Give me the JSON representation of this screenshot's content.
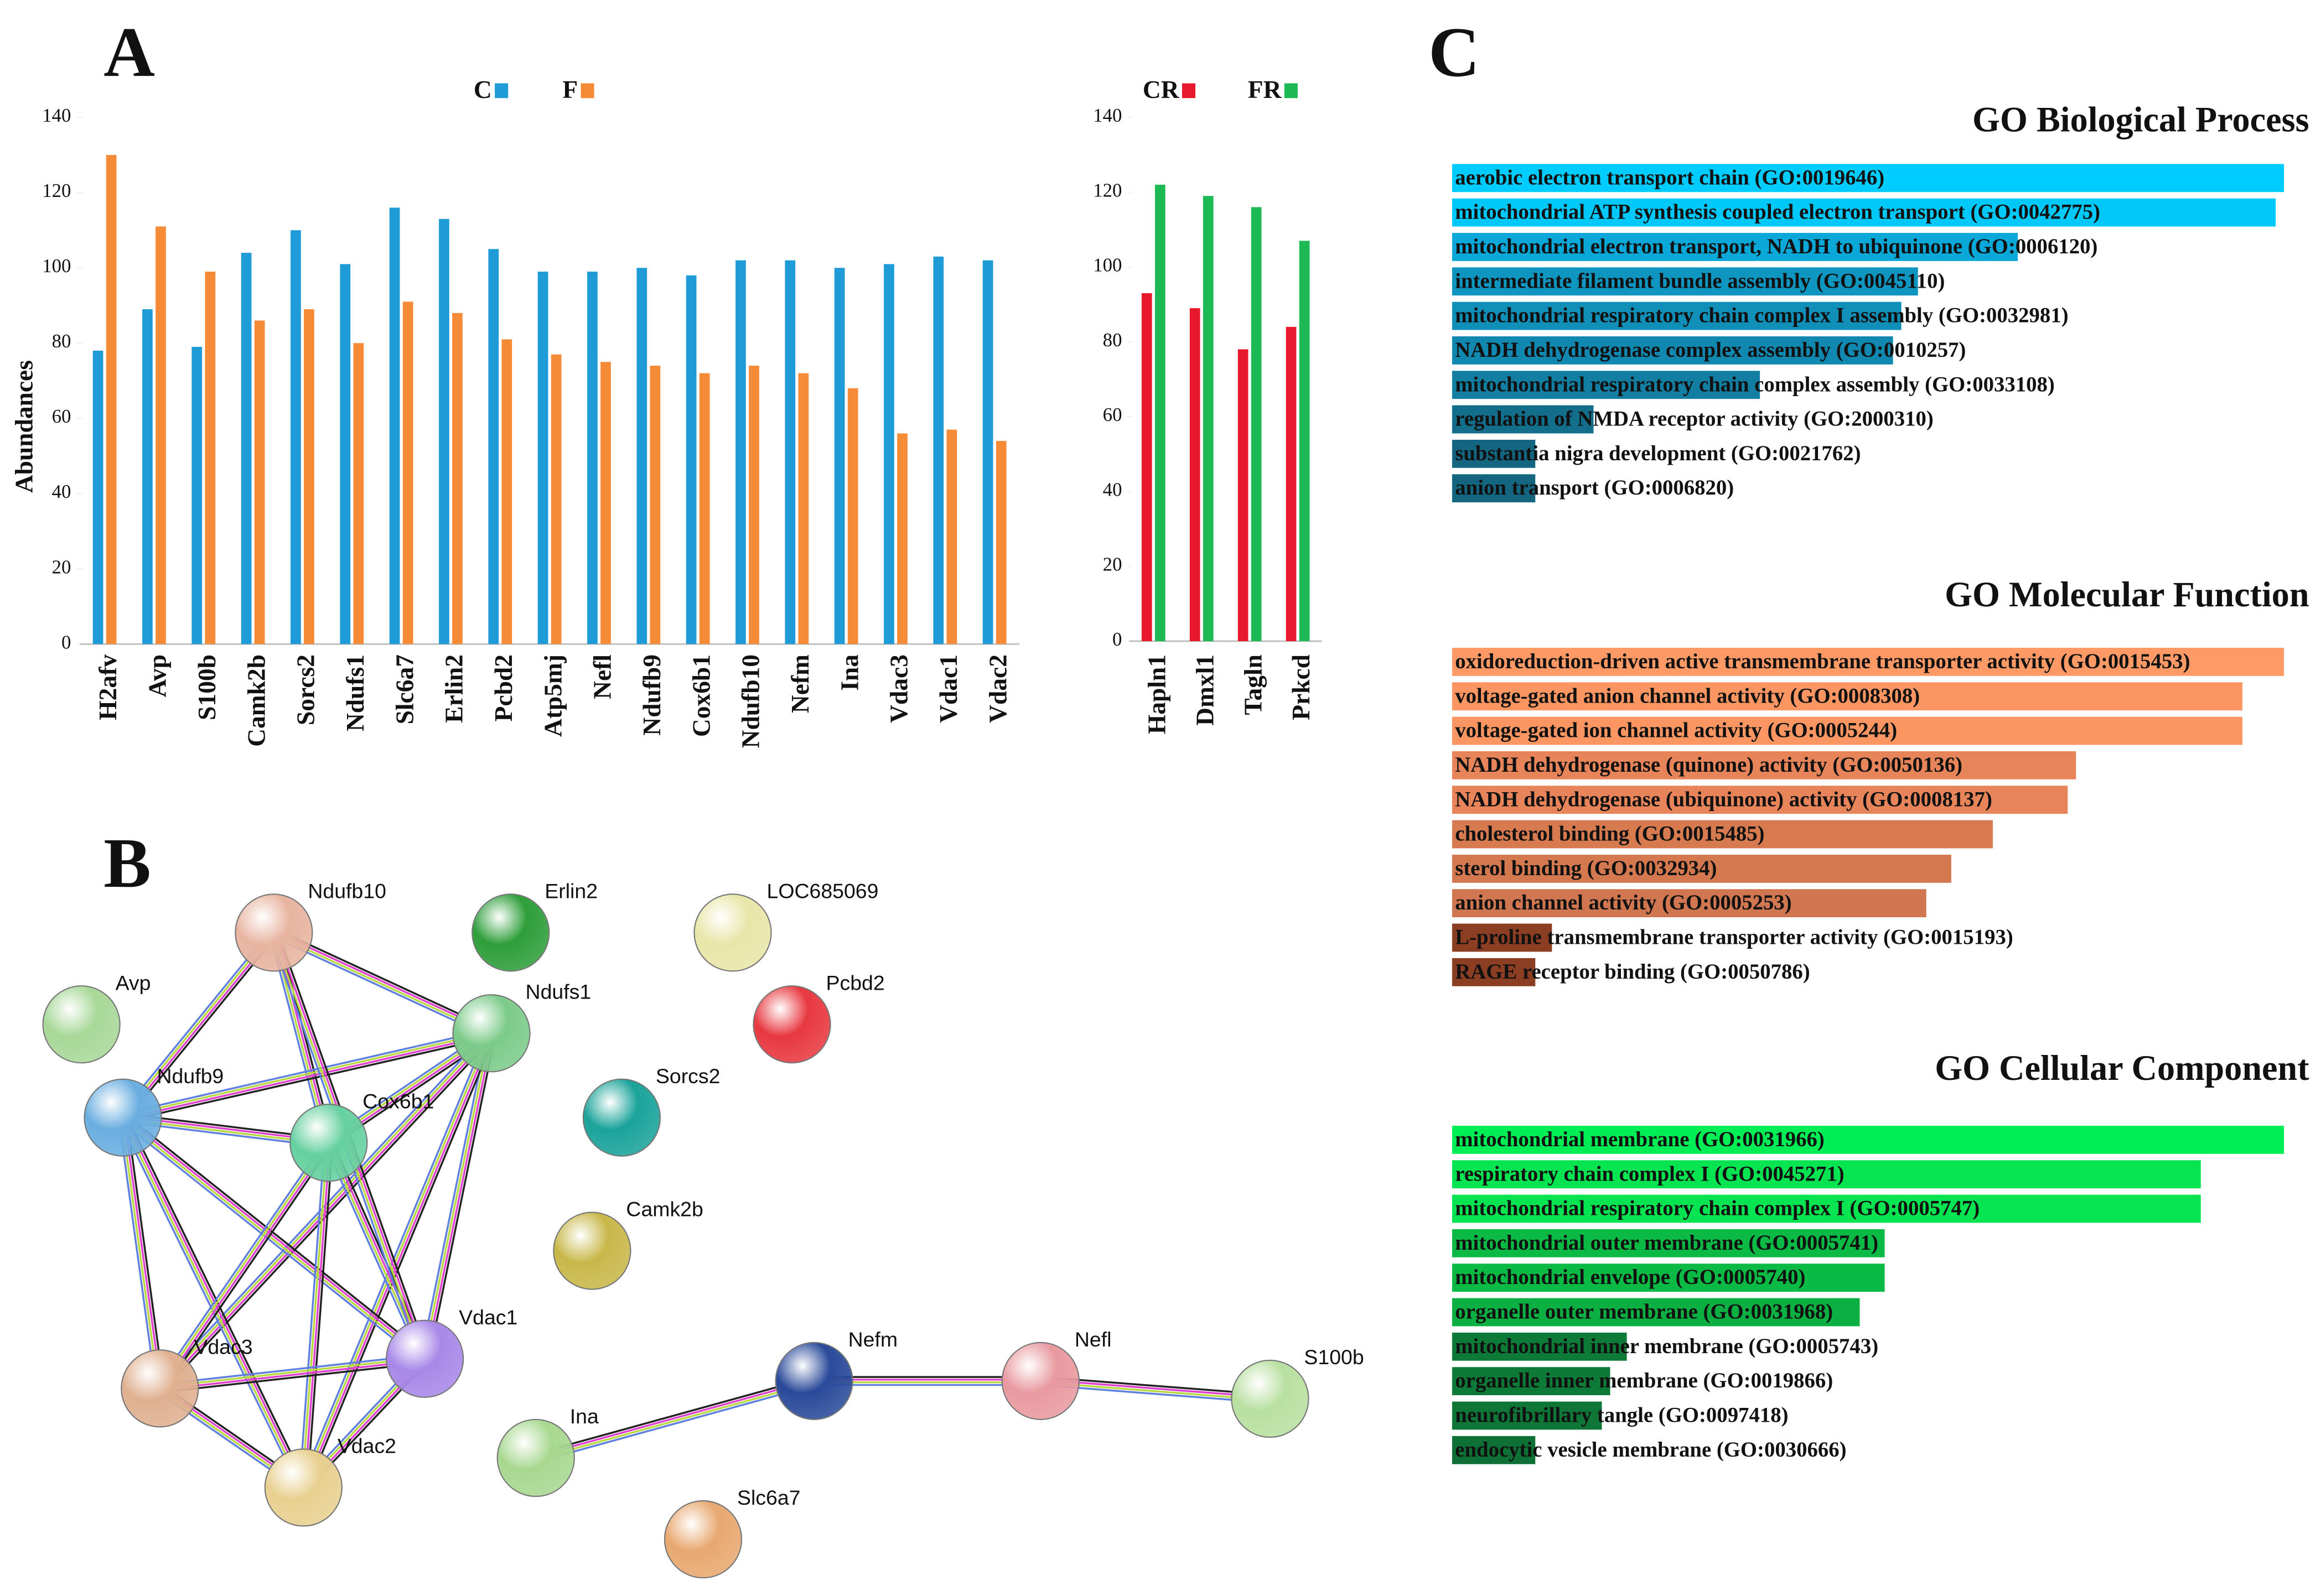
{
  "panel_labels": [
    "A",
    "B",
    "C"
  ],
  "chart_data": [
    {
      "type": "bar",
      "ylabel": "Abundances",
      "categories": [
        "H2afv",
        "Avp",
        "S100b",
        "Camk2b",
        "Sorcs2",
        "Ndufs1",
        "Slc6a7",
        "Erlin2",
        "Pcbd2",
        "Atp5mj",
        "Nefl",
        "Ndufb9",
        "Cox6b1",
        "Ndufb10",
        "Nefm",
        "Ina",
        "Vdac3",
        "Vdac1",
        "Vdac2"
      ],
      "series": [
        {
          "name": "C",
          "color": "#1f9bd7",
          "values": [
            78,
            89,
            79,
            104,
            110,
            101,
            116,
            113,
            105,
            99,
            99,
            100,
            98,
            102,
            102,
            100,
            101,
            103,
            102
          ]
        },
        {
          "name": "F",
          "color": "#f58a37",
          "values": [
            130,
            111,
            99,
            86,
            89,
            80,
            91,
            88,
            81,
            77,
            75,
            74,
            72,
            74,
            72,
            68,
            56,
            57,
            54
          ]
        }
      ],
      "ylim": [
        0,
        140
      ],
      "yticks": [
        0,
        20,
        40,
        60,
        80,
        100,
        120,
        140
      ]
    },
    {
      "type": "bar",
      "categories": [
        "Hapln1",
        "Dmxl1",
        "Tagln",
        "Prkcd"
      ],
      "series": [
        {
          "name": "CR",
          "color": "#e8192c",
          "values": [
            93,
            89,
            78,
            84
          ]
        },
        {
          "name": "FR",
          "color": "#1db954",
          "values": [
            122,
            119,
            116,
            107
          ]
        }
      ],
      "ylim": [
        0,
        140
      ],
      "yticks": [
        0,
        20,
        40,
        60,
        80,
        100,
        120,
        140
      ]
    },
    {
      "type": "barh",
      "title": "GO Biological Process",
      "categories": [
        "aerobic electron transport chain (GO:0019646)",
        "mitochondrial ATP synthesis coupled electron transport (GO:0042775)",
        "mitochondrial electron transport, NADH to ubiquinone (GO:0006120)",
        "intermediate filament bundle assembly (GO:0045110)",
        "mitochondrial respiratory chain complex I assembly (GO:0032981)",
        "NADH dehydrogenase complex assembly (GO:0010257)",
        "mitochondrial respiratory chain complex assembly (GO:0033108)",
        "regulation of NMDA receptor activity (GO:2000310)",
        "substantia nigra development (GO:0021762)",
        "anion transport (GO:0006820)"
      ],
      "values": [
        100,
        99,
        68,
        56,
        54,
        53,
        37,
        17,
        10,
        10
      ],
      "colors": [
        "#00ccff",
        "#00c8f8",
        "#0aa8d8",
        "#0e96c0",
        "#1090b8",
        "#1088b0",
        "#127ea2",
        "#136e8c",
        "#146680",
        "#146680"
      ]
    },
    {
      "type": "barh",
      "title": "GO Molecular Function",
      "categories": [
        "oxidoreduction-driven active transmembrane transporter activity (GO:0015453)",
        "voltage-gated anion channel activity (GO:0008308)",
        "voltage-gated ion channel activity (GO:0005244)",
        "NADH dehydrogenase (quinone) activity (GO:0050136)",
        "NADH dehydrogenase (ubiquinone) activity (GO:0008137)",
        "cholesterol binding (GO:0015485)",
        "sterol binding (GO:0032934)",
        "anion channel activity (GO:0005253)",
        "L-proline transmembrane transporter activity (GO:0015193)",
        "RAGE receptor binding (GO:0050786)"
      ],
      "values": [
        100,
        95,
        95,
        75,
        74,
        65,
        60,
        57,
        12,
        10
      ],
      "colors": [
        "#ff9966",
        "#fb9662",
        "#fb9662",
        "#e8845a",
        "#e8845a",
        "#d87a50",
        "#d47850",
        "#d07650",
        "#8c3e22",
        "#8c3e22"
      ]
    },
    {
      "type": "barh",
      "title": "GO Cellular Component",
      "categories": [
        "mitochondrial membrane (GO:0031966)",
        "respiratory chain complex I (GO:0045271)",
        "mitochondrial respiratory chain complex I (GO:0005747)",
        "mitochondrial outer membrane (GO:0005741)",
        "mitochondrial envelope (GO:0005740)",
        "organelle outer membrane (GO:0031968)",
        "mitochondrial inner membrane (GO:0005743)",
        "organelle inner membrane (GO:0019866)",
        "neurofibrillary tangle (GO:0097418)",
        "endocytic vesicle membrane (GO:0030666)"
      ],
      "values": [
        100,
        90,
        90,
        52,
        52,
        49,
        21,
        19,
        18,
        10
      ],
      "colors": [
        "#00ee55",
        "#06e452",
        "#06e452",
        "#0aba44",
        "#0aba44",
        "#0cb042",
        "#0e7a38",
        "#0e7a38",
        "#0e7636",
        "#0e7034"
      ]
    }
  ],
  "network": {
    "nodes": [
      {
        "label": "Ndufb10"
      },
      {
        "label": "Erlin2"
      },
      {
        "label": "LOC685069"
      },
      {
        "label": "Avp"
      },
      {
        "label": "Pcbd2"
      },
      {
        "label": "Ndufs1"
      },
      {
        "label": "Ndufb9"
      },
      {
        "label": "Cox6b1"
      },
      {
        "label": "Sorcs2"
      },
      {
        "label": "Camk2b"
      },
      {
        "label": "Vdac1"
      },
      {
        "label": "Vdac3"
      },
      {
        "label": "Nefm"
      },
      {
        "label": "Nefl"
      },
      {
        "label": "S100b"
      },
      {
        "label": "Ina"
      },
      {
        "label": "Vdac2"
      },
      {
        "label": "Slc6a7"
      }
    ]
  }
}
